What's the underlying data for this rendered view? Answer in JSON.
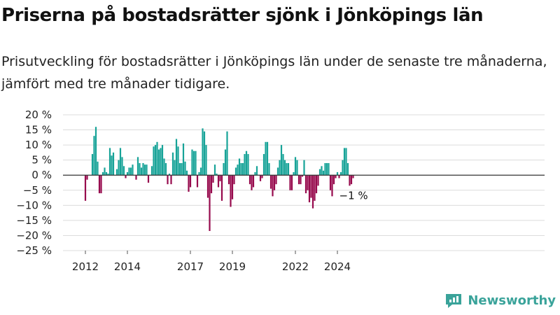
{
  "title": "Priserna på bostadsrätter sjönk i Jönköpings län",
  "subtitle": "Prisutveckling för bostadsrätter i Jönköpings län under de senaste tre månaderna, jämfört med tre månader tidigare.",
  "brand": {
    "name": "Newsworthy",
    "icon": "newsworthy-logo-icon"
  },
  "colors": {
    "positive": "#17a398",
    "negative": "#970a4d",
    "grid": "#dcdcdc",
    "zero": "#333333",
    "text": "#222222"
  },
  "chart_data": {
    "type": "bar",
    "title": "",
    "xlabel": "",
    "ylabel": "",
    "ylim": [
      -25,
      20
    ],
    "y_ticks": [
      20,
      15,
      10,
      5,
      0,
      -5,
      -10,
      -15,
      -20,
      -25
    ],
    "y_tick_labels": [
      "20 %",
      "15 %",
      "10 %",
      "5 %",
      "0 %",
      "−5 %",
      "−10 %",
      "−15 %",
      "−20 %",
      "−25 %"
    ],
    "x_start": "2012-01",
    "x_ticks": [
      {
        "label": "2012",
        "month": "2012-01"
      },
      {
        "label": "2014",
        "month": "2014-01"
      },
      {
        "label": "2017",
        "month": "2017-01"
      },
      {
        "label": "2019",
        "month": "2019-01"
      },
      {
        "label": "2022",
        "month": "2022-01"
      },
      {
        "label": "2024",
        "month": "2024-01"
      }
    ],
    "grid": true,
    "legend": "none",
    "annotation": {
      "text": "−1 %",
      "month": "2024-10",
      "value": -1
    },
    "values": [
      -8.5,
      -1.5,
      0,
      0,
      7,
      13,
      16,
      4.5,
      -6,
      -6,
      1,
      2.5,
      1,
      0.5,
      9,
      6.5,
      7.5,
      0,
      2,
      5,
      9,
      6,
      3,
      -1,
      1,
      2.5,
      2.5,
      3.5,
      0,
      -1.5,
      6,
      4,
      2.5,
      4,
      3.5,
      3.5,
      -2.5,
      0,
      3,
      9.5,
      10,
      11,
      8.5,
      9,
      10,
      5.5,
      4,
      -3,
      0.5,
      -3,
      7.5,
      5,
      12,
      9.5,
      4,
      4,
      10.5,
      4.5,
      1.5,
      -5.5,
      -4,
      8.5,
      8,
      8,
      -4,
      1,
      2.5,
      15.5,
      14.5,
      10,
      -7.5,
      -18.5,
      -6,
      -2.5,
      3.5,
      0.5,
      -4,
      -2,
      -8.5,
      4,
      8.5,
      14.5,
      -3,
      -10.5,
      -8,
      -3,
      2.5,
      3.5,
      5.5,
      4,
      4,
      7,
      8,
      7,
      -3,
      -5,
      -4,
      1,
      3,
      0,
      -2,
      -1,
      7,
      11,
      11,
      4,
      -4.5,
      -7,
      -5,
      -3,
      2.5,
      5,
      10,
      7,
      5,
      4,
      4,
      -5,
      -5,
      1,
      6,
      5,
      -3,
      -3,
      -0.5,
      5,
      -6,
      -5,
      -9,
      -7.5,
      -11,
      -8.5,
      -6,
      -3.5,
      2,
      3,
      1.5,
      4,
      4,
      4,
      -5,
      -7,
      -3,
      -1,
      1,
      -1,
      1,
      5,
      9,
      9,
      4,
      -3.5,
      -3,
      -1
    ]
  }
}
